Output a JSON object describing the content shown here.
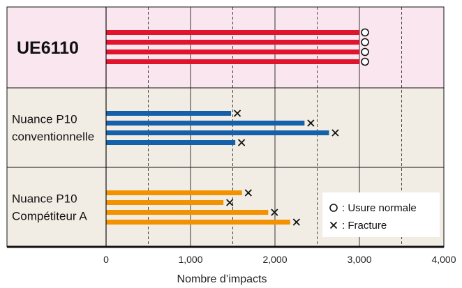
{
  "chart_data": {
    "type": "bar",
    "orientation": "horizontal",
    "xlabel": "Nombre d’impacts",
    "xlim": [
      0,
      4000
    ],
    "xticks": [
      "0",
      "1,000",
      "2,000",
      "3,000",
      "4,000"
    ],
    "xtick_values": [
      0,
      1000,
      2000,
      3000,
      4000
    ],
    "grid": "vertical lines: solid at 1,000 steps, dashed at 500 steps",
    "legend": {
      "position": "bottom-right",
      "entries": [
        {
          "marker": "circle",
          "label": ": Usure normale"
        },
        {
          "marker": "cross",
          "label": ": Fracture"
        }
      ]
    },
    "groups": [
      {
        "label_lines": [
          "UE6110"
        ],
        "bold": true,
        "background": "#f9e6ef",
        "color": "#e0142d",
        "marker": "circle",
        "values": [
          3000,
          3000,
          3000,
          3000
        ]
      },
      {
        "label_lines": [
          "Nuance P10",
          "conventionnelle"
        ],
        "bold": false,
        "background": "#f2ede4",
        "color": "#1560aa",
        "marker": "cross",
        "values": [
          1480,
          2350,
          2640,
          1530
        ]
      },
      {
        "label_lines": [
          "Nuance P10",
          "Compétiteur A"
        ],
        "bold": false,
        "background": "#f2ede4",
        "color": "#f39200",
        "marker": "cross",
        "values": [
          1610,
          1390,
          1920,
          2180
        ]
      }
    ]
  }
}
